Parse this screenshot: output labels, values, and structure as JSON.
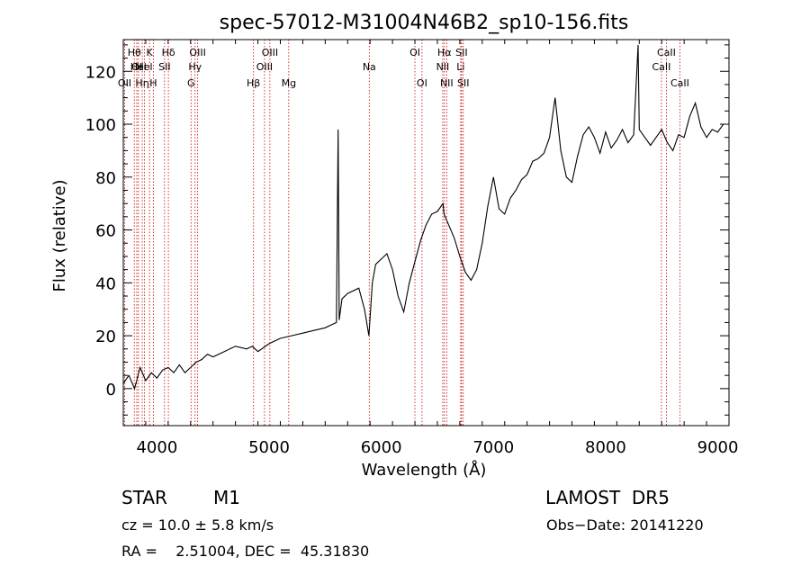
{
  "chart_data": {
    "type": "line",
    "title": "spec-57012-M31004N46B2_sp10-156.fits",
    "xlabel": "Wavelength (Å)",
    "ylabel": "Flux (relative)",
    "xlim": [
      3700,
      9100
    ],
    "ylim": [
      -14,
      132
    ],
    "x_ticks": [
      4000,
      5000,
      6000,
      7000,
      8000,
      9000
    ],
    "y_ticks": [
      0,
      20,
      40,
      60,
      80,
      100,
      120
    ],
    "grid": false,
    "line_color": "#000000",
    "marker_color": "#cc0000",
    "series": [
      {
        "x": [
          3700,
          3750,
          3800,
          3850,
          3900,
          3950,
          4000,
          4050,
          4100,
          4150,
          4200,
          4250,
          4300,
          4350,
          4400,
          4450,
          4500,
          4600,
          4700,
          4800,
          4850,
          4900,
          5000,
          5100,
          5200,
          5300,
          5400,
          5500,
          5550,
          5600,
          5615,
          5625,
          5650,
          5700,
          5800,
          5850,
          5890,
          5920,
          5950,
          6000,
          6050,
          6100,
          6150,
          6200,
          6250,
          6300,
          6350,
          6400,
          6450,
          6500,
          6550,
          6560,
          6600,
          6650,
          6700,
          6750,
          6800,
          6850,
          6900,
          6950,
          7000,
          7050,
          7100,
          7150,
          7200,
          7250,
          7300,
          7350,
          7400,
          7450,
          7500,
          7550,
          7600,
          7650,
          7700,
          7750,
          7800,
          7850,
          7900,
          7950,
          8000,
          8050,
          8100,
          8150,
          8200,
          8250,
          8290,
          8300,
          8350,
          8400,
          8450,
          8500,
          8550,
          8600,
          8650,
          8700,
          8750,
          8800,
          8850,
          8900,
          8950,
          9000,
          9050
        ],
        "y": [
          2,
          5,
          0,
          8,
          3,
          6,
          4,
          7,
          8,
          6,
          9,
          6,
          8,
          10,
          11,
          13,
          12,
          14,
          16,
          15,
          16,
          14,
          17,
          19,
          20,
          21,
          22,
          23,
          24,
          25,
          98,
          26,
          34,
          36,
          38,
          30,
          20,
          40,
          47,
          49,
          51,
          45,
          35,
          29,
          40,
          48,
          56,
          62,
          66,
          67,
          70,
          66,
          62,
          57,
          50,
          44,
          41,
          45,
          55,
          69,
          80,
          68,
          66,
          72,
          75,
          79,
          81,
          86,
          87,
          89,
          95,
          110,
          90,
          80,
          78,
          88,
          96,
          99,
          95,
          89,
          97,
          91,
          94,
          98,
          93,
          96,
          130,
          98,
          95,
          92,
          95,
          98,
          93,
          90,
          96,
          95,
          103,
          108,
          99,
          95,
          98,
          97,
          100
        ]
      }
    ],
    "lines": [
      {
        "x": 3712,
        "label": "OII",
        "row": 3
      },
      {
        "x": 3798,
        "label": "Hθ",
        "row": 1
      },
      {
        "x": 3820,
        "label": "OI",
        "row": 2
      },
      {
        "x": 3835,
        "label": "Hel",
        "row": 2
      },
      {
        "x": 3869,
        "label": "Hη",
        "row": 3
      },
      {
        "x": 3889,
        "label": "Hel",
        "row": 2
      },
      {
        "x": 3934,
        "label": "K",
        "row": 1
      },
      {
        "x": 3968,
        "label": "H",
        "row": 3
      },
      {
        "x": 4068,
        "label": "SII",
        "row": 2
      },
      {
        "x": 4102,
        "label": "Hδ",
        "row": 1
      },
      {
        "x": 4304,
        "label": "G",
        "row": 3
      },
      {
        "x": 4340,
        "label": "Hγ",
        "row": 2
      },
      {
        "x": 4363,
        "label": "OIII",
        "row": 1
      },
      {
        "x": 4861,
        "label": "Hβ",
        "row": 3
      },
      {
        "x": 4959,
        "label": "OIII",
        "row": 2
      },
      {
        "x": 5007,
        "label": "OIII",
        "row": 1
      },
      {
        "x": 5175,
        "label": "Mg",
        "row": 3
      },
      {
        "x": 5893,
        "label": "Na",
        "row": 2
      },
      {
        "x": 6300,
        "label": "OI",
        "row": 1
      },
      {
        "x": 6363,
        "label": "OI",
        "row": 3
      },
      {
        "x": 6548,
        "label": "NII",
        "row": 2
      },
      {
        "x": 6563,
        "label": "Hα",
        "row": 1
      },
      {
        "x": 6583,
        "label": "NII",
        "row": 3
      },
      {
        "x": 6708,
        "label": "Li",
        "row": 2
      },
      {
        "x": 6716,
        "label": "SII",
        "row": 1
      },
      {
        "x": 6731,
        "label": "SII",
        "row": 3
      },
      {
        "x": 8498,
        "label": "CaII",
        "row": 2
      },
      {
        "x": 8542,
        "label": "CaII",
        "row": 1
      },
      {
        "x": 8662,
        "label": "CaII",
        "row": 3
      }
    ]
  },
  "info": {
    "class": "STAR",
    "subclass": "M1",
    "survey": "LAMOST  DR5",
    "cz": "cz = 10.0 ± 5.8 km/s",
    "obs_date": "Obs−Date: 20141220",
    "coords": "RA =    2.51004, DEC =  45.31830"
  }
}
